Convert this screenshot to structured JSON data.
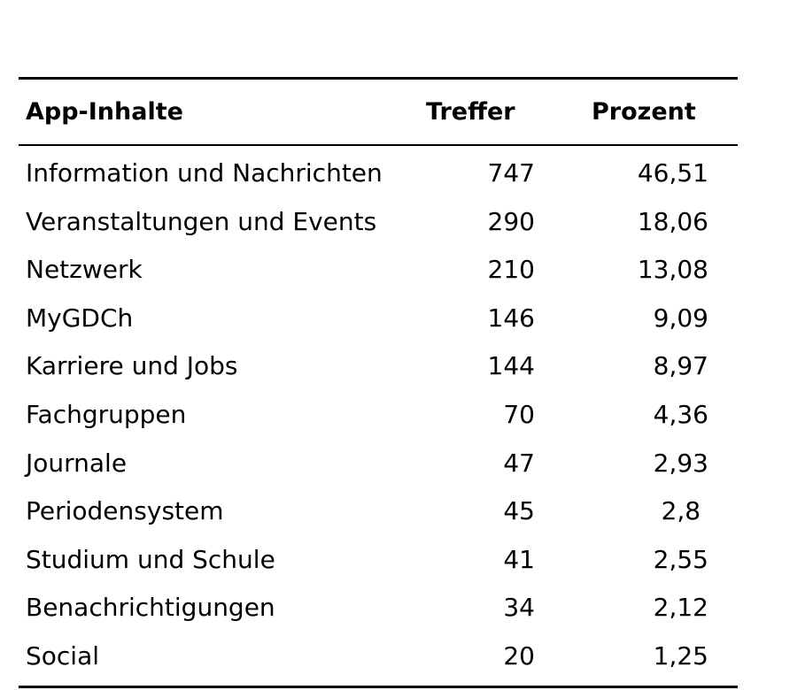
{
  "table": {
    "headers": {
      "content": "App-Inhalte",
      "hits": "Treffer",
      "percent": "Prozent"
    },
    "rows": [
      {
        "content": "Information und Nachrichten",
        "hits": "747",
        "percent": "46,51"
      },
      {
        "content": "Veranstaltungen und Events",
        "hits": "290",
        "percent": "18,06"
      },
      {
        "content": "Netzwerk",
        "hits": "210",
        "percent": "13,08"
      },
      {
        "content": "MyGDCh",
        "hits": "146",
        "percent": "9,09"
      },
      {
        "content": "Karriere und Jobs",
        "hits": "144",
        "percent": "8,97"
      },
      {
        "content": "Fachgruppen",
        "hits": "70",
        "percent": "4,36"
      },
      {
        "content": "Journale",
        "hits": "47",
        "percent": "2,93"
      },
      {
        "content": "Periodensystem",
        "hits": "45",
        "percent": "2,8 "
      },
      {
        "content": "Studium und Schule",
        "hits": "41",
        "percent": "2,55"
      },
      {
        "content": "Benachrichtigungen",
        "hits": "34",
        "percent": "2,12"
      },
      {
        "content": "Social",
        "hits": "20",
        "percent": "1,25"
      }
    ]
  }
}
